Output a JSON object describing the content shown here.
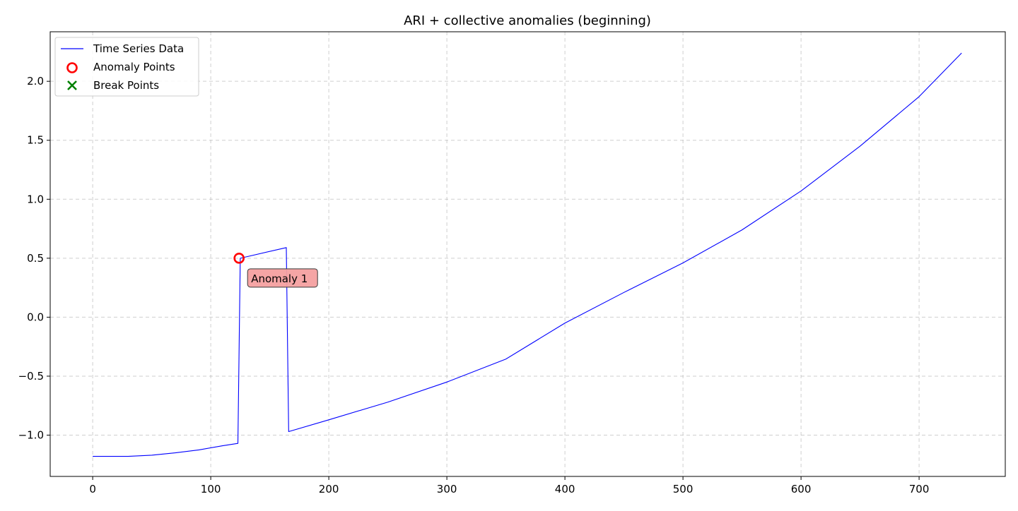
{
  "chart_data": {
    "type": "line",
    "title": "ARI + collective anomalies (beginning)",
    "xlabel": "",
    "ylabel": "",
    "xlim": [
      -36,
      773
    ],
    "ylim": [
      -1.35,
      2.42
    ],
    "xticks": [
      0,
      100,
      200,
      300,
      400,
      500,
      600,
      700
    ],
    "yticks": [
      -1.0,
      -0.5,
      0.0,
      0.5,
      1.0,
      1.5,
      2.0
    ],
    "xtick_labels": [
      "0",
      "100",
      "200",
      "300",
      "400",
      "500",
      "600",
      "700"
    ],
    "ytick_labels": [
      "−1.0",
      "−0.5",
      "0.0",
      "0.5",
      "1.0",
      "1.5",
      "2.0"
    ],
    "grid": true,
    "legend_position": "top-left",
    "series": [
      {
        "name": "Time Series Data",
        "color": "#0000ff",
        "x": [
          0,
          30,
          50,
          70,
          90,
          110,
          123,
          125,
          164,
          166,
          200,
          250,
          300,
          350,
          400,
          450,
          500,
          550,
          600,
          650,
          700,
          736
        ],
        "y": [
          -1.18,
          -1.18,
          -1.17,
          -1.15,
          -1.125,
          -1.09,
          -1.07,
          0.5,
          0.59,
          -0.97,
          -0.87,
          -0.72,
          -0.55,
          -0.355,
          -0.05,
          0.21,
          0.46,
          0.74,
          1.07,
          1.45,
          1.87,
          2.24
        ]
      }
    ],
    "anomaly_points": {
      "name": "Anomaly Points",
      "color": "#ff0000",
      "points": [
        {
          "x": 124,
          "y": 0.5
        }
      ]
    },
    "break_points": {
      "name": "Break Points",
      "color": "#008000",
      "points": []
    },
    "annotations": [
      {
        "text": "Anomaly 1",
        "x": 124,
        "y": 0.5,
        "background": "#f4a0a0"
      }
    ]
  }
}
